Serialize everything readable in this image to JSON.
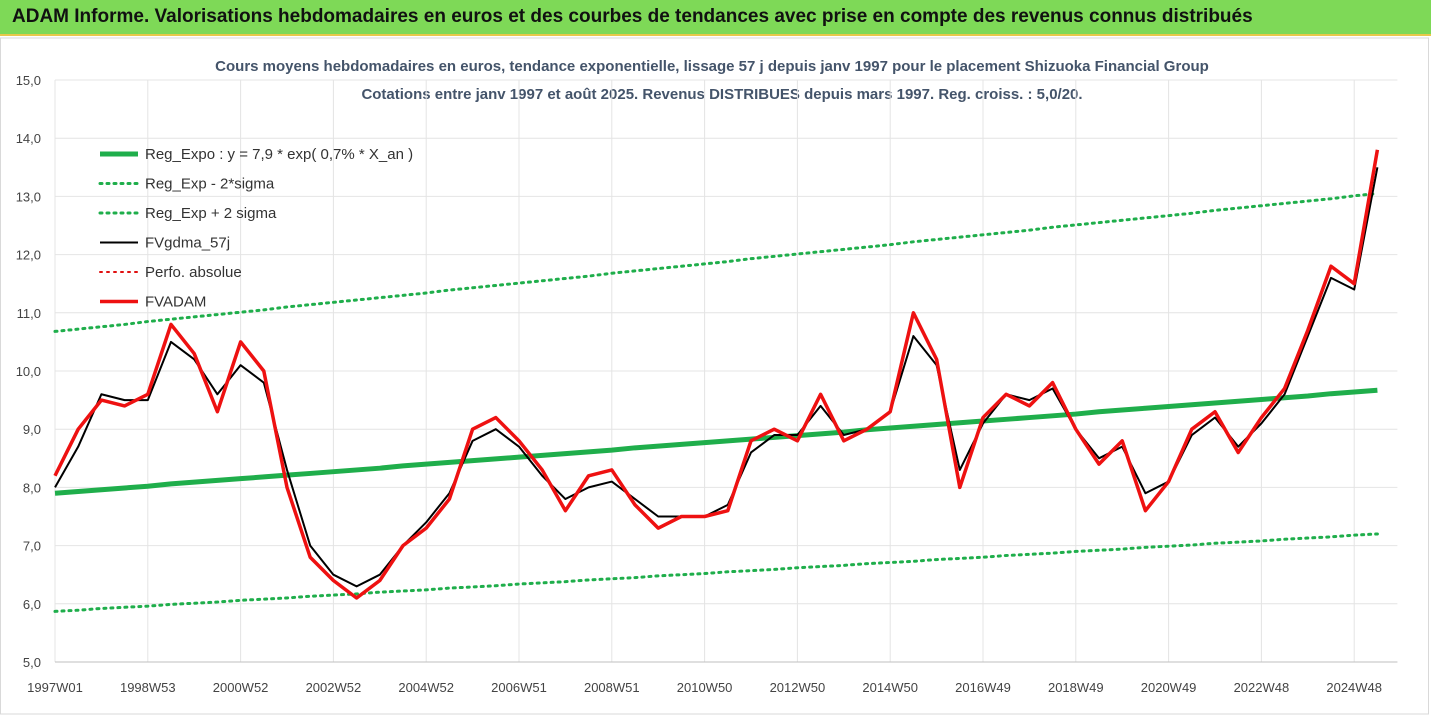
{
  "header": {
    "title": "ADAM Informe. Valorisations hebdomadaires en euros et des courbes de tendances avec prise en compte des revenus connus distribués"
  },
  "chart_data": {
    "type": "line",
    "title": "Cours moyens hebdomadaires en euros, tendance exponentielle, lissage 57 j depuis janv 1997  pour le placement Shizuoka Financial Group",
    "subtitle": "Cotations entre janv 1997 et août 2025.  Revenus DISTRIBUES depuis mars 1997. Reg. croiss. : 5,0/20.",
    "x": [
      "1997W01",
      null,
      null,
      null,
      "1998W53",
      null,
      null,
      null,
      "2000W52",
      null,
      null,
      null,
      "2002W52",
      null,
      null,
      null,
      "2004W52",
      null,
      null,
      null,
      "2006W51",
      null,
      null,
      null,
      "2008W51",
      null,
      null,
      null,
      "2010W50",
      null,
      null,
      null,
      "2012W50",
      null,
      null,
      null,
      "2014W50",
      null,
      null,
      null,
      "2016W49",
      null,
      null,
      null,
      "2018W49",
      null,
      null,
      null,
      "2020W49",
      null,
      null,
      null,
      "2022W48",
      null,
      null,
      null,
      "2024W48",
      null
    ],
    "ylim": [
      5,
      15
    ],
    "yticks": [
      {
        "value": 5,
        "label": "5,0"
      },
      {
        "value": 6,
        "label": "6,0"
      },
      {
        "value": 7,
        "label": "7,0"
      },
      {
        "value": 8,
        "label": "8,0"
      },
      {
        "value": 9,
        "label": "9,0"
      },
      {
        "value": 10,
        "label": "10,0"
      },
      {
        "value": 11,
        "label": "11,0"
      },
      {
        "value": 12,
        "label": "12,0"
      },
      {
        "value": 13,
        "label": "13,0"
      },
      {
        "value": 14,
        "label": "14,0"
      },
      {
        "value": 15,
        "label": "15,0"
      }
    ],
    "grid": true,
    "legend": "upper left",
    "series": [
      {
        "name": "Reg_Expo : y = 7,9 * exp( 0,7% *  X_an )",
        "color": "#1fae4b",
        "style": "solid",
        "width": 5,
        "values": [
          7.9,
          7.93,
          7.96,
          7.99,
          8.02,
          8.06,
          8.09,
          8.12,
          8.15,
          8.18,
          8.21,
          8.24,
          8.27,
          8.3,
          8.33,
          8.37,
          8.4,
          8.43,
          8.46,
          8.49,
          8.52,
          8.55,
          8.58,
          8.61,
          8.64,
          8.68,
          8.71,
          8.74,
          8.77,
          8.8,
          8.83,
          8.86,
          8.89,
          8.92,
          8.95,
          8.99,
          9.02,
          9.05,
          9.08,
          9.11,
          9.14,
          9.17,
          9.2,
          9.23,
          9.26,
          9.3,
          9.33,
          9.36,
          9.39,
          9.42,
          9.45,
          9.48,
          9.51,
          9.54,
          9.57,
          9.61,
          9.64,
          9.67
        ]
      },
      {
        "name": "Reg_Exp - 2*sigma",
        "color": "#1fae4b",
        "style": "dotted",
        "width": 3,
        "values": [
          5.87,
          5.89,
          5.92,
          5.94,
          5.96,
          5.99,
          6.01,
          6.03,
          6.06,
          6.08,
          6.1,
          6.13,
          6.15,
          6.17,
          6.2,
          6.22,
          6.24,
          6.27,
          6.29,
          6.31,
          6.34,
          6.36,
          6.38,
          6.41,
          6.43,
          6.45,
          6.48,
          6.5,
          6.52,
          6.55,
          6.57,
          6.59,
          6.62,
          6.64,
          6.66,
          6.69,
          6.71,
          6.73,
          6.76,
          6.78,
          6.8,
          6.83,
          6.85,
          6.87,
          6.9,
          6.92,
          6.94,
          6.97,
          6.99,
          7.01,
          7.04,
          7.06,
          7.08,
          7.11,
          7.13,
          7.15,
          7.18,
          7.2
        ]
      },
      {
        "name": "Reg_Exp + 2 sigma",
        "color": "#1fae4b",
        "style": "dotted",
        "width": 3,
        "values": [
          10.68,
          10.72,
          10.76,
          10.8,
          10.85,
          10.89,
          10.93,
          10.97,
          11.01,
          11.05,
          11.1,
          11.14,
          11.18,
          11.22,
          11.26,
          11.3,
          11.34,
          11.39,
          11.43,
          11.47,
          11.51,
          11.55,
          11.59,
          11.63,
          11.68,
          11.72,
          11.76,
          11.8,
          11.84,
          11.88,
          11.93,
          11.97,
          12.01,
          12.05,
          12.09,
          12.13,
          12.17,
          12.22,
          12.26,
          12.3,
          12.34,
          12.38,
          12.42,
          12.47,
          12.51,
          12.55,
          12.59,
          12.63,
          12.67,
          12.71,
          12.76,
          12.8,
          12.84,
          12.88,
          12.92,
          12.96,
          13.01,
          13.05
        ]
      },
      {
        "name": "FVgdma_57j",
        "color": "#000000",
        "style": "solid",
        "width": 2,
        "values": [
          8.0,
          8.7,
          9.6,
          9.5,
          9.5,
          10.5,
          10.2,
          9.6,
          10.1,
          9.8,
          8.3,
          7.0,
          6.5,
          6.3,
          6.5,
          7.0,
          7.4,
          7.9,
          8.8,
          9.0,
          8.7,
          8.2,
          7.8,
          8.0,
          8.1,
          7.8,
          7.5,
          7.5,
          7.5,
          7.7,
          8.6,
          8.9,
          8.9,
          9.4,
          8.9,
          9.0,
          9.3,
          10.6,
          10.1,
          8.3,
          9.1,
          9.6,
          9.5,
          9.7,
          9.0,
          8.5,
          8.7,
          7.9,
          8.1,
          8.9,
          9.2,
          8.7,
          9.1,
          9.6,
          10.6,
          11.6,
          11.4,
          13.5
        ]
      },
      {
        "name": "Perfo. absolue",
        "color": "#e01010",
        "style": "dotted",
        "width": 2,
        "values": [
          null,
          null,
          null,
          null,
          null,
          null,
          null,
          null,
          null,
          null,
          null,
          null,
          null,
          null,
          null,
          null,
          null,
          null,
          null,
          null,
          null,
          null,
          null,
          null,
          null,
          null,
          null,
          null,
          null,
          null,
          null,
          null,
          null,
          null,
          null,
          null,
          null,
          null,
          null,
          null,
          null,
          null,
          null,
          null,
          null,
          null,
          null,
          null,
          null,
          null,
          null,
          null,
          null,
          null,
          null,
          null,
          null,
          null
        ]
      },
      {
        "name": "FVADAM",
        "color": "#ee1111",
        "style": "solid",
        "width": 3.5,
        "values": [
          8.2,
          9.0,
          9.5,
          9.4,
          9.6,
          10.8,
          10.3,
          9.3,
          10.5,
          10.0,
          8.0,
          6.8,
          6.4,
          6.1,
          6.4,
          7.0,
          7.3,
          7.8,
          9.0,
          9.2,
          8.8,
          8.3,
          7.6,
          8.2,
          8.3,
          7.7,
          7.3,
          7.5,
          7.5,
          7.6,
          8.8,
          9.0,
          8.8,
          9.6,
          8.8,
          9.0,
          9.3,
          11.0,
          10.2,
          8.0,
          9.2,
          9.6,
          9.4,
          9.8,
          9.0,
          8.4,
          8.8,
          7.6,
          8.1,
          9.0,
          9.3,
          8.6,
          9.2,
          9.7,
          10.7,
          11.8,
          11.5,
          13.8
        ]
      }
    ]
  }
}
